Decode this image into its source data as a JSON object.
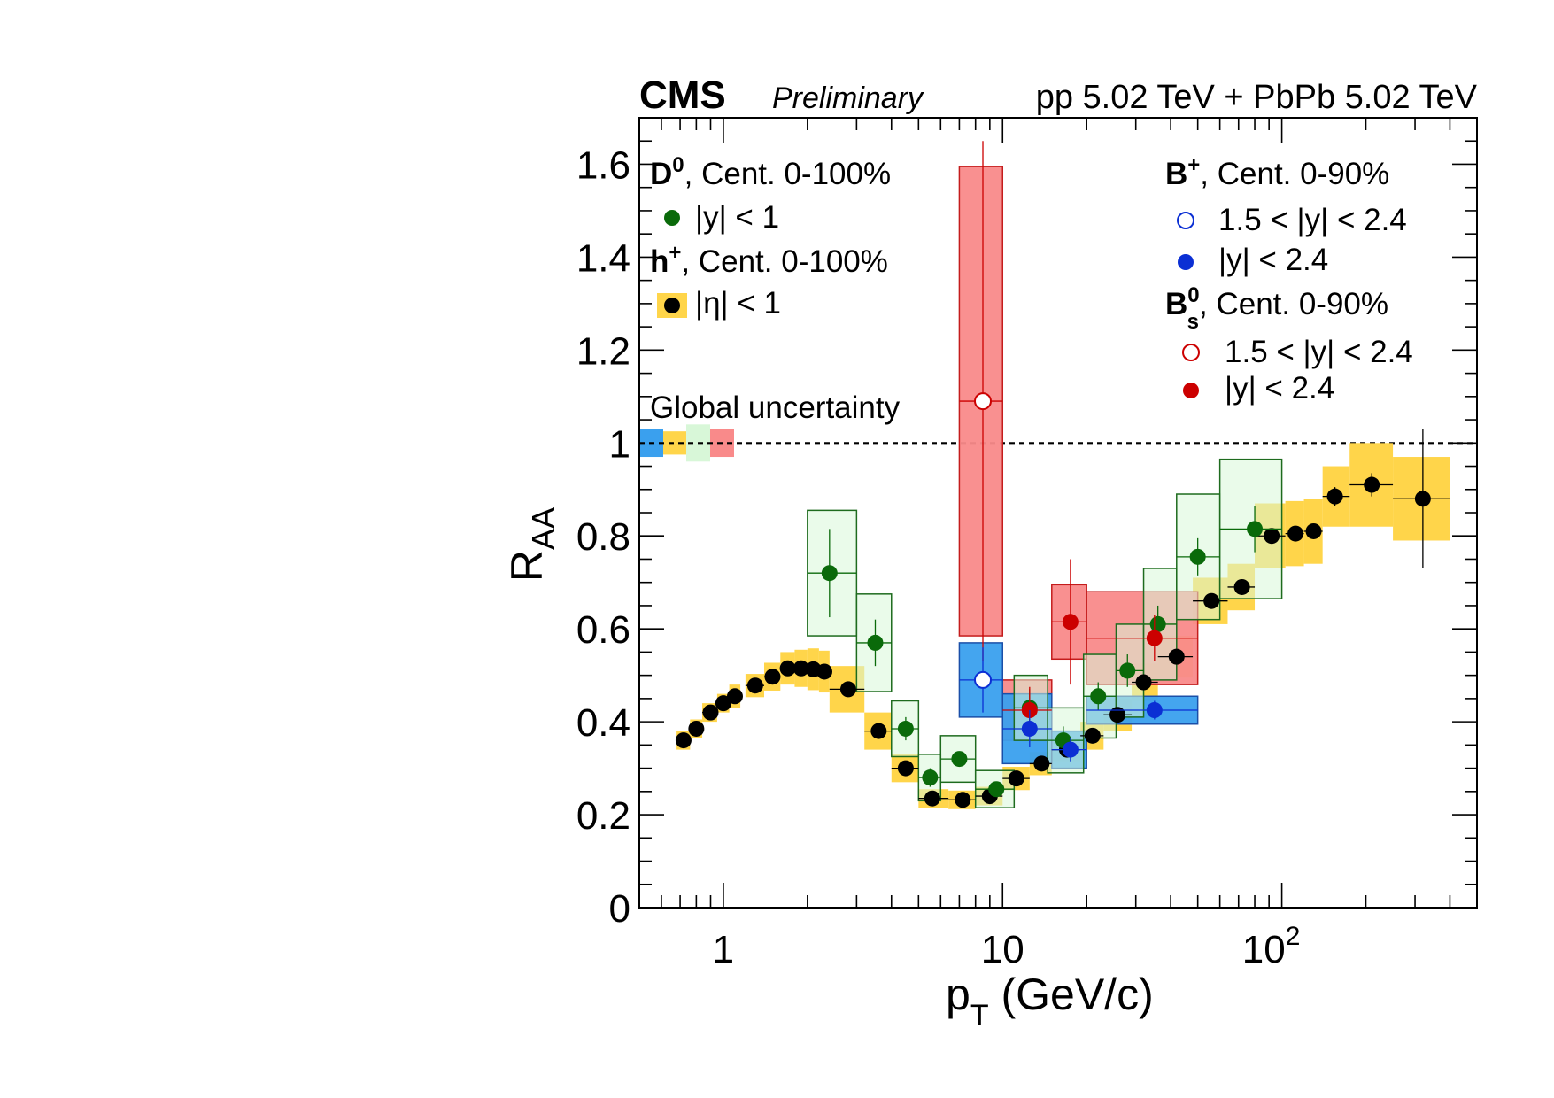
{
  "header": {
    "experiment": "CMS",
    "status": "Preliminary",
    "energy": "pp 5.02 TeV + PbPb 5.02 TeV"
  },
  "global_uncertainty_label": "Global uncertainty",
  "legend": {
    "d0_particle": "D",
    "d0_sup": "0",
    "d0_cent": ", Cent. 0-100%",
    "d0_entry": "|y| < 1",
    "h_particle": "h",
    "h_sup": "+",
    "h_cent": ", Cent. 0-100%",
    "h_entry": "|η| < 1",
    "bplus_particle": "B",
    "bplus_sup": "+",
    "bplus_cent": ", Cent. 0-90%",
    "bplus_entry_fwd": "1.5 < |y| < 2.4",
    "bplus_entry_all": "|y| < 2.4",
    "bs_particle": "B",
    "bs_sup": "0",
    "bs_sub": "s",
    "bs_cent": ", Cent. 0-90%",
    "bs_entry_fwd": "1.5 < |y| < 2.4",
    "bs_entry_all": "|y| < 2.4"
  },
  "colors": {
    "h_box": "#ffd54a",
    "h_marker": "#000000",
    "d0_box_fill": "#d8f7d8",
    "d0_box_stroke": "#1e6b1e",
    "d0_marker": "#0a6a0a",
    "bplus_box_fill": "#3aa0ee",
    "bplus_box_stroke": "#1a4fa8",
    "bplus_marker": "#0b2fd4",
    "bs_box_fill": "#f98a8a",
    "bs_box_stroke": "#c41c1c",
    "bs_marker": "#cc0000"
  },
  "chart_data": {
    "type": "scatter",
    "xlabel": "p_T (GeV/c)",
    "ylabel": "R_AA",
    "xscale": "log",
    "xlim": [
      0.5,
      500
    ],
    "ylim": [
      0,
      1.7
    ],
    "x_tick_labels": [
      "1",
      "10",
      "10^2"
    ],
    "y_tick_labels": [
      "0",
      "0.2",
      "0.4",
      "0.6",
      "0.8",
      "1",
      "1.2",
      "1.4",
      "1.6"
    ],
    "reference_line": 1,
    "global_uncertainty_boxes": [
      {
        "series": "B+",
        "lo": 0.97,
        "hi": 1.03
      },
      {
        "series": "h+",
        "lo": 0.975,
        "hi": 1.025
      },
      {
        "series": "D0",
        "lo": 0.96,
        "hi": 1.04
      },
      {
        "series": "Bs0",
        "lo": 0.97,
        "hi": 1.03
      }
    ],
    "series": [
      {
        "name": "h+ |η| < 1",
        "points": [
          {
            "x": 0.72,
            "y": 0.36,
            "xlo": 0.68,
            "xhi": 0.76,
            "sys": 0.02,
            "stat": 0
          },
          {
            "x": 0.8,
            "y": 0.385,
            "xlo": 0.76,
            "xhi": 0.84,
            "sys": 0.02,
            "stat": 0
          },
          {
            "x": 0.9,
            "y": 0.42,
            "xlo": 0.84,
            "xhi": 0.95,
            "sys": 0.02,
            "stat": 0
          },
          {
            "x": 1.0,
            "y": 0.44,
            "xlo": 0.95,
            "xhi": 1.05,
            "sys": 0.02,
            "stat": 0
          },
          {
            "x": 1.1,
            "y": 0.455,
            "xlo": 1.05,
            "xhi": 1.15,
            "sys": 0.025,
            "stat": 0
          },
          {
            "x": 1.3,
            "y": 0.478,
            "xlo": 1.2,
            "xhi": 1.4,
            "sys": 0.025,
            "stat": 0
          },
          {
            "x": 1.5,
            "y": 0.497,
            "xlo": 1.4,
            "xhi": 1.6,
            "sys": 0.03,
            "stat": 0
          },
          {
            "x": 1.7,
            "y": 0.515,
            "xlo": 1.6,
            "xhi": 1.8,
            "sys": 0.035,
            "stat": 0
          },
          {
            "x": 1.9,
            "y": 0.515,
            "xlo": 1.8,
            "xhi": 2.0,
            "sys": 0.04,
            "stat": 0
          },
          {
            "x": 2.1,
            "y": 0.513,
            "xlo": 2.0,
            "xhi": 2.2,
            "sys": 0.045,
            "stat": 0
          },
          {
            "x": 2.3,
            "y": 0.508,
            "xlo": 2.2,
            "xhi": 2.4,
            "sys": 0.045,
            "stat": 0
          },
          {
            "x": 2.8,
            "y": 0.47,
            "xlo": 2.4,
            "xhi": 3.2,
            "sys": 0.05,
            "stat": 0
          },
          {
            "x": 3.6,
            "y": 0.38,
            "xlo": 3.2,
            "xhi": 4.0,
            "sys": 0.04,
            "stat": 0
          },
          {
            "x": 4.5,
            "y": 0.3,
            "xlo": 4.0,
            "xhi": 5.0,
            "sys": 0.03,
            "stat": 0
          },
          {
            "x": 5.6,
            "y": 0.235,
            "xlo": 5.0,
            "xhi": 6.4,
            "sys": 0.02,
            "stat": 0
          },
          {
            "x": 7.2,
            "y": 0.232,
            "xlo": 6.4,
            "xhi": 8.0,
            "sys": 0.02,
            "stat": 0
          },
          {
            "x": 9.0,
            "y": 0.24,
            "xlo": 8.0,
            "xhi": 10.0,
            "sys": 0.02,
            "stat": 0
          },
          {
            "x": 11.2,
            "y": 0.278,
            "xlo": 10,
            "xhi": 12.5,
            "sys": 0.025,
            "stat": 0
          },
          {
            "x": 13.8,
            "y": 0.31,
            "xlo": 12.5,
            "xhi": 15,
            "sys": 0.025,
            "stat": 0
          },
          {
            "x": 17.0,
            "y": 0.34,
            "xlo": 15,
            "xhi": 19,
            "sys": 0.025,
            "stat": 0
          },
          {
            "x": 21.0,
            "y": 0.37,
            "xlo": 19,
            "xhi": 23,
            "sys": 0.03,
            "stat": 0
          },
          {
            "x": 25.8,
            "y": 0.415,
            "xlo": 23,
            "xhi": 29,
            "sys": 0.035,
            "stat": 0
          },
          {
            "x": 32.0,
            "y": 0.485,
            "xlo": 29,
            "xhi": 36,
            "sys": 0.04,
            "stat": 0
          },
          {
            "x": 42.0,
            "y": 0.54,
            "xlo": 36,
            "xhi": 48,
            "sys": 0.045,
            "stat": 0
          },
          {
            "x": 56.0,
            "y": 0.66,
            "xlo": 48,
            "xhi": 64,
            "sys": 0.05,
            "stat": 0
          },
          {
            "x": 72.0,
            "y": 0.69,
            "xlo": 64,
            "xhi": 80,
            "sys": 0.05,
            "stat": 0
          },
          {
            "x": 92.0,
            "y": 0.8,
            "xlo": 80,
            "xhi": 103,
            "sys": 0.07,
            "stat": 0
          },
          {
            "x": 112,
            "y": 0.805,
            "xlo": 103,
            "xhi": 120,
            "sys": 0.07,
            "stat": 0
          },
          {
            "x": 130,
            "y": 0.81,
            "xlo": 120,
            "xhi": 140,
            "sys": 0.07,
            "stat": 0
          },
          {
            "x": 155,
            "y": 0.885,
            "xlo": 140,
            "xhi": 175,
            "sys": 0.065,
            "stat": 0.02
          },
          {
            "x": 210,
            "y": 0.91,
            "xlo": 175,
            "xhi": 250,
            "sys": 0.09,
            "stat": 0.025
          },
          {
            "x": 320,
            "y": 0.88,
            "xlo": 250,
            "xhi": 400,
            "sys": 0.09,
            "stat": 0.15
          }
        ]
      },
      {
        "name": "D0 |y| < 1",
        "points": [
          {
            "x": 2.4,
            "y": 0.72,
            "xlo": 2.0,
            "xhi": 3.0,
            "sys": 0.135,
            "stat": 0.095
          },
          {
            "x": 3.5,
            "y": 0.57,
            "xlo": 3.0,
            "xhi": 4.0,
            "sys": 0.105,
            "stat": 0.05
          },
          {
            "x": 4.5,
            "y": 0.385,
            "xlo": 4.0,
            "xhi": 5.0,
            "sys": 0.06,
            "stat": 0.025
          },
          {
            "x": 5.5,
            "y": 0.28,
            "xlo": 5.0,
            "xhi": 6.0,
            "sys": 0.05,
            "stat": 0.02
          },
          {
            "x": 7.0,
            "y": 0.32,
            "xlo": 6.0,
            "xhi": 8.0,
            "sys": 0.05,
            "stat": 0.015
          },
          {
            "x": 9.5,
            "y": 0.255,
            "xlo": 8.0,
            "xhi": 11.0,
            "sys": 0.04,
            "stat": 0.015
          },
          {
            "x": 12.5,
            "y": 0.43,
            "xlo": 11.0,
            "xhi": 14.5,
            "sys": 0.07,
            "stat": 0.04
          },
          {
            "x": 16.5,
            "y": 0.36,
            "xlo": 14.5,
            "xhi": 19.5,
            "sys": 0.07,
            "stat": 0.03
          },
          {
            "x": 22.0,
            "y": 0.455,
            "xlo": 19.5,
            "xhi": 25.5,
            "sys": 0.09,
            "stat": 0.03
          },
          {
            "x": 28.0,
            "y": 0.51,
            "xlo": 25.5,
            "xhi": 32.0,
            "sys": 0.1,
            "stat": 0.035
          },
          {
            "x": 36.0,
            "y": 0.61,
            "xlo": 32.0,
            "xhi": 42.0,
            "sys": 0.12,
            "stat": 0.04
          },
          {
            "x": 50.0,
            "y": 0.755,
            "xlo": 42.0,
            "xhi": 60.0,
            "sys": 0.135,
            "stat": 0.04
          },
          {
            "x": 80.0,
            "y": 0.815,
            "xlo": 60.0,
            "xhi": 100.0,
            "sys": 0.15,
            "stat": 0.05
          }
        ]
      },
      {
        "name": "B+ 1.5 < |y| < 2.4",
        "open": true,
        "points": [
          {
            "x": 8.5,
            "y": 0.49,
            "xlo": 7.0,
            "xhi": 10.0,
            "sys": 0.08,
            "stat": 0.07
          }
        ]
      },
      {
        "name": "B+ |y| < 2.4",
        "points": [
          {
            "x": 12.5,
            "y": 0.385,
            "xlo": 10.0,
            "xhi": 15.0,
            "sys": 0.075,
            "stat": 0.04
          },
          {
            "x": 17.5,
            "y": 0.34,
            "xlo": 15.0,
            "xhi": 20.0,
            "sys": 0.04,
            "stat": 0.025
          },
          {
            "x": 35.0,
            "y": 0.425,
            "xlo": 20.0,
            "xhi": 50.0,
            "sys": 0.03,
            "stat": 0.02
          }
        ]
      },
      {
        "name": "Bs0 1.5 < |y| < 2.4",
        "open": true,
        "points": [
          {
            "x": 8.5,
            "y": 1.09,
            "xlo": 7.0,
            "xhi": 10.0,
            "sys": 0.505,
            "stat": 0.56
          }
        ]
      },
      {
        "name": "Bs0 |y| < 2.4",
        "points": [
          {
            "x": 12.5,
            "y": 0.425,
            "xlo": 10.0,
            "xhi": 15.0,
            "sys": 0.065,
            "stat": 0.05
          },
          {
            "x": 17.5,
            "y": 0.615,
            "xlo": 15.0,
            "xhi": 20.0,
            "sys": 0.08,
            "stat": 0.135
          },
          {
            "x": 35.0,
            "y": 0.58,
            "xlo": 20.0,
            "xhi": 50.0,
            "sys": 0.1,
            "stat": 0.05
          }
        ]
      }
    ]
  }
}
